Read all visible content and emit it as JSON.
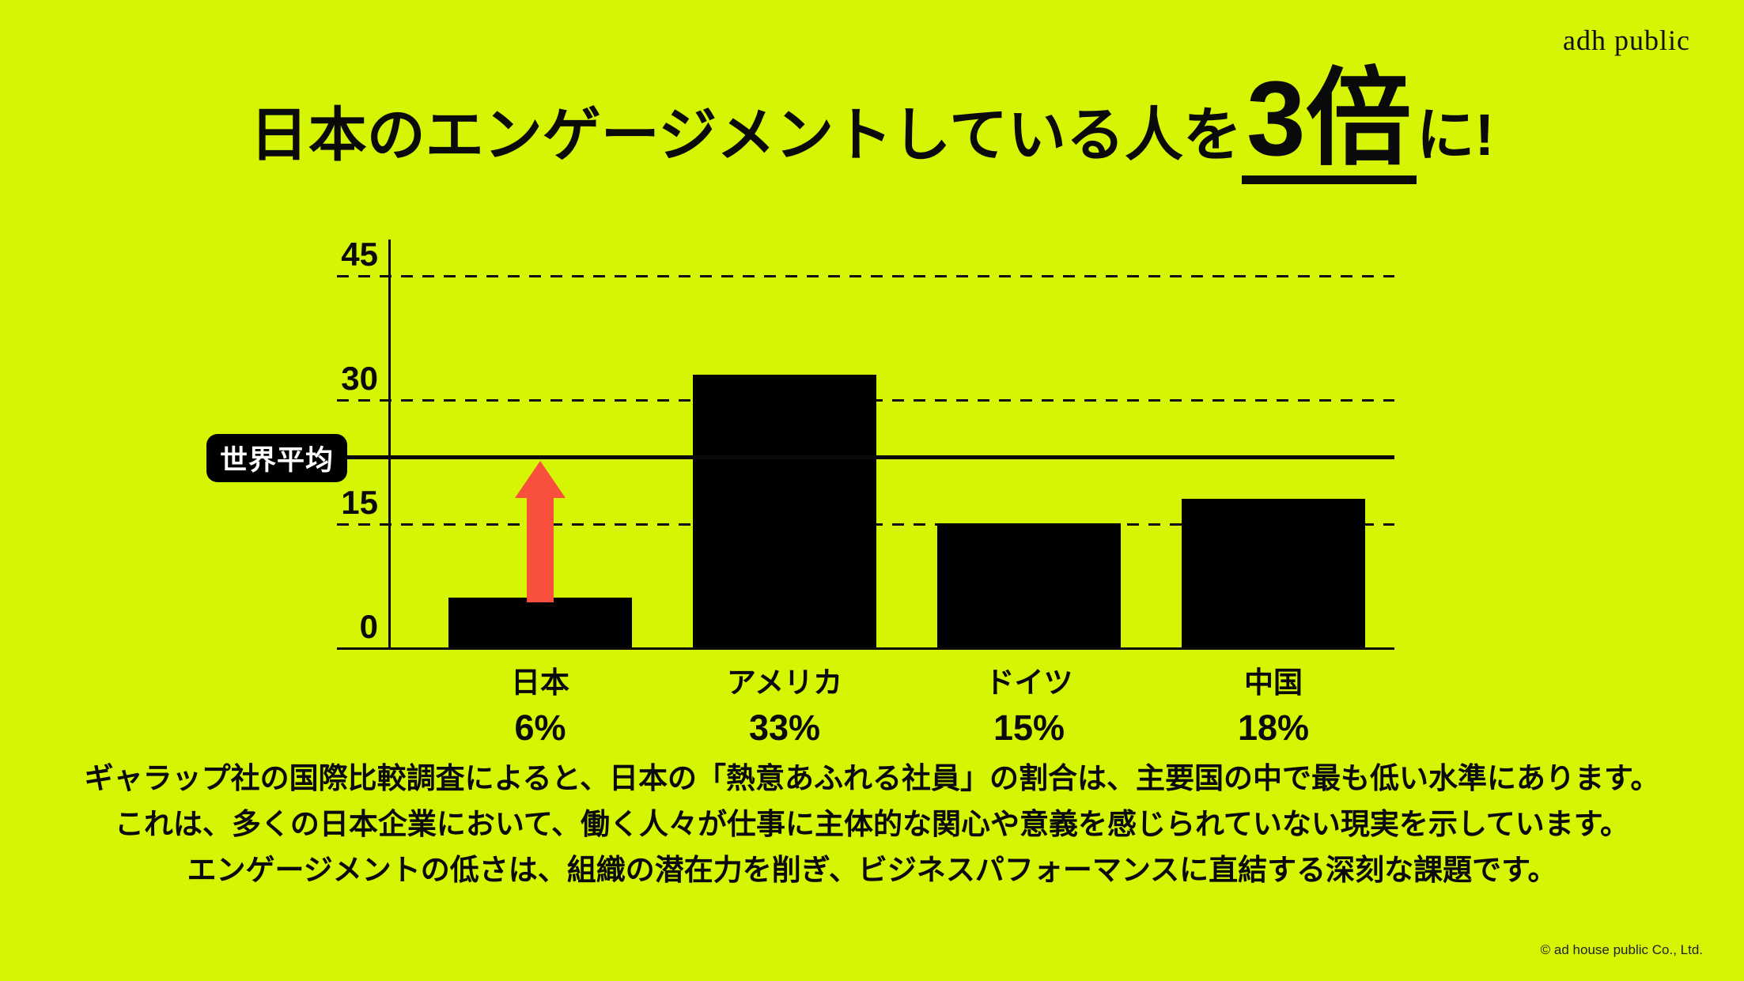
{
  "brand": {
    "logo_text": "adh public",
    "copyright_text": "© ad house public Co., Ltd."
  },
  "title": {
    "prefix": "日本のエンゲージメントしている人を",
    "highlight": "3倍",
    "suffix": "に!"
  },
  "chart_data": {
    "type": "bar",
    "categories": [
      "日本",
      "アメリカ",
      "ドイツ",
      "中国"
    ],
    "values": [
      6,
      33,
      15,
      18
    ],
    "value_labels": [
      "6%",
      "33%",
      "15%",
      "18%"
    ],
    "yticks": [
      0,
      15,
      30,
      45
    ],
    "ylim": [
      0,
      48
    ],
    "grid": "horizontal-dashed",
    "legend": "none",
    "bar_color": "#000000",
    "reference_line": {
      "label": "世界平均",
      "value": 23
    },
    "annotation": {
      "shape": "up-arrow",
      "color": "#F8503C",
      "category": "日本",
      "from_value": 6,
      "to_value": 23
    }
  },
  "description": {
    "lines": [
      "ギャラップ社の国際比較調査によると、日本の「熱意あふれる社員」の割合は、主要国の中で最も低い水準にあります。",
      "これは、多くの日本企業において、働く人々が仕事に主体的な関心や意義を感じられていない現実を示しています。",
      "エンゲージメントの低さは、組織の潜在力を削ぎ、ビジネスパフォーマンスに直結する深刻な課題です。"
    ]
  },
  "colors": {
    "background": "#D6F505",
    "foreground": "#0A0A0A",
    "arrow": "#F8503C",
    "reference_box_bg": "#000000",
    "reference_box_text": "#FFFFFF"
  }
}
